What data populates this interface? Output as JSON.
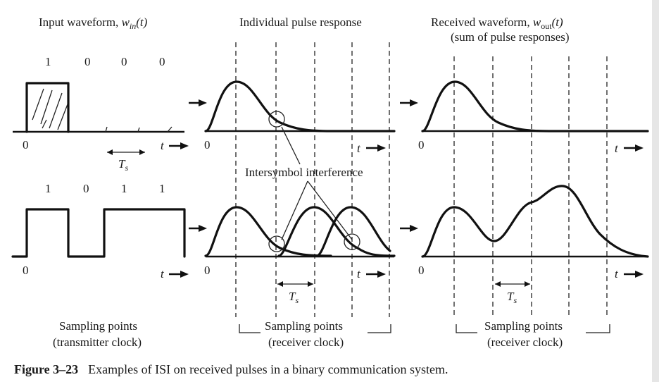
{
  "headers": {
    "input": "Input waveform,",
    "input_sym": "w",
    "input_sub": "in",
    "input_arg": "(t)",
    "pulse": "Individual pulse response",
    "received": "Received waveform,",
    "received_sym": "w",
    "received_sub": "out",
    "received_arg": "(t)",
    "received_note": "(sum of pulse responses)"
  },
  "bits_row1": [
    "1",
    "0",
    "0",
    "0"
  ],
  "bits_row2": [
    "1",
    "0",
    "1",
    "1"
  ],
  "axis": {
    "origin": "0",
    "t": "t",
    "ts_main": "T",
    "ts_sub": "s"
  },
  "isi_label": "Intersymbol interference",
  "sampling": {
    "label": "Sampling points",
    "transmitter": "(transmitter clock)",
    "receiver": "(receiver clock)"
  },
  "caption": {
    "figure": "Figure 3–23",
    "text": "Examples of ISI on received pulses in a binary communication system."
  }
}
